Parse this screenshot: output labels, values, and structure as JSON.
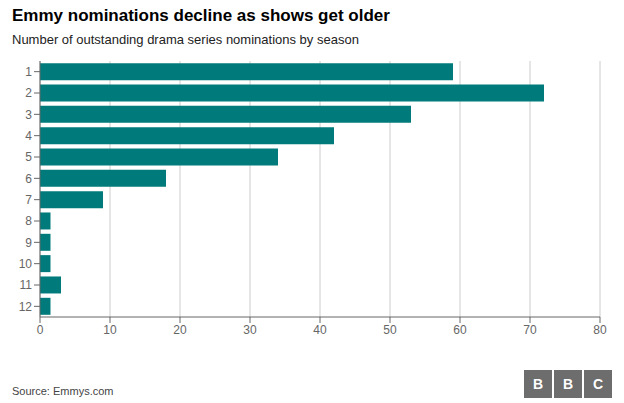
{
  "chart_data": {
    "type": "bar",
    "orientation": "horizontal",
    "title": "Emmy nominations decline as shows get older",
    "subtitle": "Number of outstanding drama series nominations by season",
    "source": "Source: Emmys.com",
    "logo": "BBC",
    "categories": [
      "1",
      "2",
      "3",
      "4",
      "5",
      "6",
      "7",
      "8",
      "9",
      "10",
      "11",
      "12"
    ],
    "values": [
      59,
      72,
      53,
      42,
      34,
      18,
      9,
      1.5,
      1.5,
      1.5,
      3,
      1.5
    ],
    "color": "#007a7a",
    "xlim": [
      0,
      80
    ],
    "xticks": [
      0,
      10,
      20,
      30,
      40,
      50,
      60,
      70,
      80
    ],
    "grid": true
  }
}
